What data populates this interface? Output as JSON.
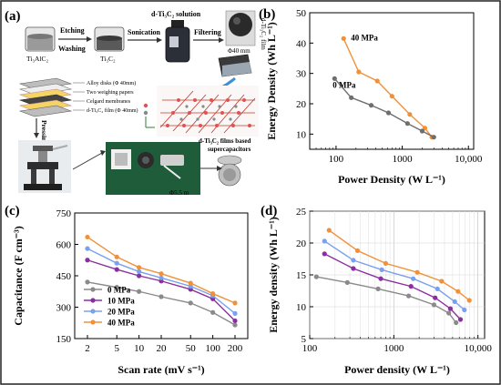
{
  "panels": {
    "a": {
      "label": "(a)",
      "steps": {
        "etching": "Etching",
        "washing": "Washing",
        "sonication": "Sonication",
        "filtering": "Filtering",
        "pressing": "Pressing"
      },
      "materials": {
        "max_phase": "Ti₃AlC₂",
        "mxene": "Ti₃C₂",
        "solution": "d-Ti₃C₂ solution",
        "film_diameter": "Φ40 mm",
        "film": "d-Ti₃C₂ film"
      },
      "stack_legend": [
        "Alloy disks (Φ 40mm)",
        "Two weighing papers",
        "Celgard membranes",
        "d-Ti₃C₂ film (Φ 40mm)"
      ],
      "electrode_diameter": "Φ5.5 m",
      "supercapacitor_caption": [
        "d-Ti₃C₂ films based",
        "supercapacitors"
      ]
    }
  },
  "chart_data": [
    {
      "panel": "(b)",
      "type": "line",
      "xlabel": "Power Density (W L⁻¹)",
      "ylabel": "Energy Density (Wh L⁻¹)",
      "xscale": "log",
      "xlim": [
        40,
        12000
      ],
      "ylim": [
        5,
        50
      ],
      "xticks": [
        "100",
        "1000",
        "10,000"
      ],
      "yticks": [
        "10",
        "20",
        "30",
        "40",
        "50"
      ],
      "grid": false,
      "series": [
        {
          "name": "40 MPa",
          "color": "#f0913a",
          "label_inline": true,
          "x": [
            130,
            220,
            420,
            700,
            1300,
            2200,
            2800
          ],
          "y": [
            41.5,
            30.5,
            27.5,
            22.5,
            16.5,
            12,
            9
          ]
        },
        {
          "name": "0 MPa",
          "color": "#6e6e6e",
          "label_inline": true,
          "x": [
            95,
            170,
            340,
            620,
            1200,
            2000,
            3000
          ],
          "y": [
            28.3,
            22,
            19.5,
            17,
            13.5,
            11,
            9
          ]
        }
      ]
    },
    {
      "panel": "(c)",
      "type": "line",
      "xlabel": "Scan rate (mV s⁻¹)",
      "ylabel": "Capacitance (F cm⁻³)",
      "xscale": "log",
      "categories": [
        "2",
        "5",
        "10",
        "20",
        "50",
        "100",
        "200"
      ],
      "ylim": [
        150,
        750
      ],
      "yticks": [
        "150",
        "300",
        "450",
        "600",
        "750"
      ],
      "legend_position": "bottom-left",
      "grid": false,
      "series": [
        {
          "name": "0 MPa",
          "color": "#8a8a8a",
          "values": [
            420,
            395,
            375,
            350,
            320,
            275,
            215
          ]
        },
        {
          "name": "10 MPa",
          "color": "#8b2fa0",
          "values": [
            525,
            480,
            450,
            425,
            385,
            340,
            235
          ]
        },
        {
          "name": "20 MPa",
          "color": "#7aa0f0",
          "values": [
            580,
            510,
            470,
            440,
            400,
            355,
            270
          ]
        },
        {
          "name": "40 MPa",
          "color": "#f0913a",
          "values": [
            635,
            540,
            490,
            460,
            415,
            365,
            320
          ]
        }
      ]
    },
    {
      "panel": "(d)",
      "type": "line",
      "xlabel": "Power density (W L⁻¹)",
      "ylabel": "Energy density (Wh L⁻¹)",
      "xscale": "log",
      "xlim": [
        100,
        12000
      ],
      "ylim": [
        5,
        25
      ],
      "xticks": [
        "100",
        "1000",
        "10,000"
      ],
      "yticks": [
        "5",
        "10",
        "15",
        "20",
        "25"
      ],
      "grid": true,
      "series": [
        {
          "name": "0 MPa",
          "color": "#8a8a8a",
          "x": [
            120,
            280,
            650,
            1500,
            3000,
            4500,
            5500
          ],
          "y": [
            14.7,
            13.8,
            12.8,
            11.7,
            10.3,
            9,
            7.5
          ]
        },
        {
          "name": "10 MPa",
          "color": "#8b2fa0",
          "x": [
            150,
            330,
            700,
            1600,
            3100,
            4700,
            6200
          ],
          "y": [
            18.3,
            16,
            14.4,
            13.2,
            11.4,
            9.7,
            8
          ]
        },
        {
          "name": "20 MPa",
          "color": "#7aa0f0",
          "x": [
            150,
            330,
            720,
            1700,
            3300,
            5300,
            6900
          ],
          "y": [
            20.3,
            17.3,
            15.8,
            14.4,
            12.8,
            10.8,
            9.5
          ]
        },
        {
          "name": "40 MPa",
          "color": "#f0913a",
          "x": [
            170,
            370,
            800,
            1900,
            3700,
            5800,
            7900
          ],
          "y": [
            22,
            18.8,
            16.8,
            15.4,
            14,
            12.4,
            11
          ]
        }
      ]
    }
  ]
}
